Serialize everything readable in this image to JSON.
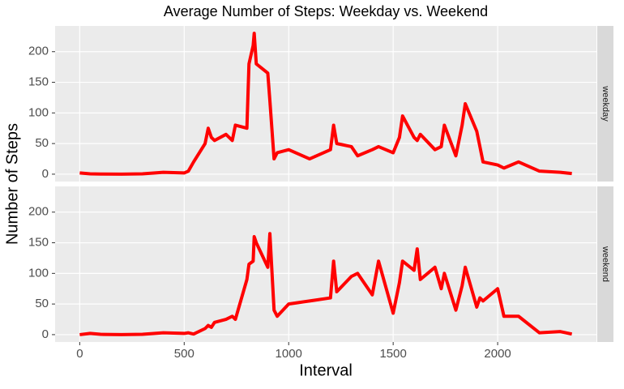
{
  "chart_data": {
    "type": "line",
    "title": "Average Number of Steps: Weekday vs. Weekend",
    "x_label": "Interval",
    "y_label": "Number of Steps",
    "x": [
      0,
      50,
      100,
      200,
      300,
      400,
      500,
      520,
      545,
      600,
      615,
      630,
      645,
      700,
      730,
      745,
      800,
      810,
      830,
      835,
      845,
      900,
      910,
      930,
      945,
      1000,
      1100,
      1200,
      1215,
      1230,
      1300,
      1330,
      1400,
      1430,
      1500,
      1530,
      1545,
      1600,
      1615,
      1630,
      1700,
      1730,
      1745,
      1800,
      1830,
      1845,
      1900,
      1915,
      1930,
      2000,
      2030,
      2100,
      2200,
      2300,
      2355
    ],
    "series": [
      {
        "name": "weekday",
        "color": "#ff0000",
        "values": [
          2,
          0.5,
          0.3,
          0,
          0.5,
          3,
          2,
          5,
          20,
          50,
          75,
          60,
          55,
          65,
          55,
          80,
          75,
          180,
          210,
          230,
          180,
          165,
          120,
          25,
          35,
          40,
          25,
          40,
          80,
          50,
          45,
          30,
          40,
          45,
          35,
          60,
          95,
          60,
          55,
          65,
          40,
          45,
          80,
          30,
          80,
          115,
          70,
          45,
          20,
          15,
          10,
          20,
          5,
          3,
          1
        ]
      },
      {
        "name": "weekend",
        "color": "#ff0000",
        "values": [
          0,
          2,
          0.5,
          0,
          0.5,
          3,
          2,
          3,
          1,
          10,
          15,
          12,
          20,
          25,
          30,
          25,
          90,
          115,
          120,
          160,
          150,
          110,
          165,
          40,
          30,
          50,
          55,
          60,
          120,
          70,
          95,
          100,
          65,
          120,
          35,
          85,
          120,
          105,
          140,
          90,
          110,
          75,
          100,
          40,
          80,
          110,
          45,
          60,
          55,
          75,
          30,
          30,
          3,
          5,
          1
        ]
      }
    ],
    "xlim": [
      -117.75,
      2472.75
    ],
    "xticks": [
      0,
      500,
      1000,
      1500,
      2000
    ],
    "ylim": [
      -12,
      242
    ],
    "yticks": [
      0,
      50,
      100,
      150,
      200
    ],
    "grid": true
  }
}
